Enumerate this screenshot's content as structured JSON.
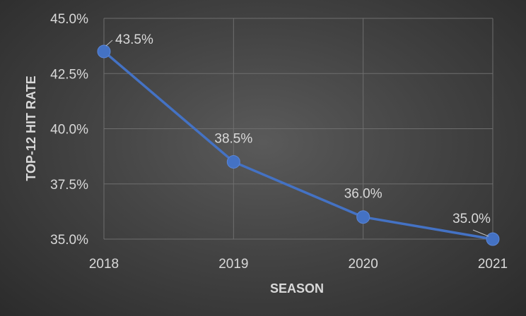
{
  "chart_data": {
    "type": "line",
    "title": "",
    "xlabel": "SEASON",
    "ylabel": "TOP-12 HIT RATE",
    "categories": [
      "2018",
      "2019",
      "2020",
      "2021"
    ],
    "series": [
      {
        "values": [
          43.5,
          38.5,
          36.0,
          35.0
        ],
        "labels": [
          "43.5%",
          "38.5%",
          "36.0%",
          "35.0%"
        ],
        "color": "#4472c4"
      }
    ],
    "ylim": [
      35.0,
      45.0
    ],
    "yticks": [
      35.0,
      37.5,
      40.0,
      42.5,
      45.0
    ],
    "ytick_labels": [
      "35.0%",
      "37.5%",
      "40.0%",
      "42.5%",
      "45.0%"
    ],
    "grid": true,
    "legend": "none"
  }
}
